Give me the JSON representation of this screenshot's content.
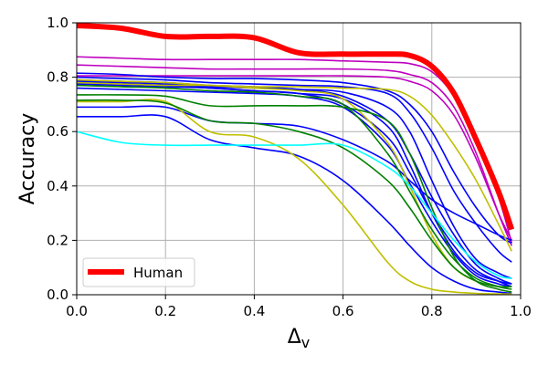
{
  "chart_data": {
    "type": "line",
    "title": "",
    "xlabel_main": "Δ",
    "xlabel_sub": "v",
    "ylabel": "Accuracy",
    "xlim": [
      0.0,
      1.0
    ],
    "ylim": [
      0.0,
      1.0
    ],
    "x_ticks": [
      "0.0",
      "0.2",
      "0.4",
      "0.6",
      "0.8",
      "1.0"
    ],
    "y_ticks": [
      "0.0",
      "0.2",
      "0.4",
      "0.6",
      "0.8",
      "1.0"
    ],
    "grid": true,
    "legend": {
      "position": "lower-left",
      "entries": [
        "Human"
      ]
    },
    "x": [
      0.0,
      0.1,
      0.2,
      0.3,
      0.4,
      0.5,
      0.6,
      0.7,
      0.75,
      0.8,
      0.85,
      0.9,
      0.95,
      0.98
    ],
    "series": [
      {
        "name": "Human",
        "color": "#ff0000",
        "width": 6,
        "legend": true,
        "values": [
          0.99,
          0.98,
          0.95,
          0.95,
          0.945,
          0.89,
          0.885,
          0.885,
          0.88,
          0.84,
          0.74,
          0.57,
          0.38,
          0.24
        ]
      },
      {
        "name": "",
        "color": "#bf00bf",
        "width": 1.6,
        "values": [
          0.875,
          0.87,
          0.865,
          0.865,
          0.865,
          0.865,
          0.86,
          0.855,
          0.85,
          0.82,
          0.73,
          0.57,
          0.36,
          0.19
        ]
      },
      {
        "name": "",
        "color": "#bf00bf",
        "width": 1.6,
        "values": [
          0.845,
          0.84,
          0.835,
          0.83,
          0.83,
          0.83,
          0.83,
          0.825,
          0.81,
          0.78,
          0.69,
          0.52,
          0.3,
          0.18
        ]
      },
      {
        "name": "",
        "color": "#bf00bf",
        "width": 1.6,
        "values": [
          0.805,
          0.805,
          0.805,
          0.805,
          0.805,
          0.805,
          0.805,
          0.8,
          0.785,
          0.75,
          0.66,
          0.5,
          0.3,
          0.2
        ]
      },
      {
        "name": "",
        "color": "#0000ff",
        "width": 1.6,
        "values": [
          0.815,
          0.81,
          0.8,
          0.795,
          0.795,
          0.79,
          0.78,
          0.75,
          0.7,
          0.6,
          0.45,
          0.32,
          0.22,
          0.19
        ]
      },
      {
        "name": "",
        "color": "#0000ff",
        "width": 1.6,
        "values": [
          0.8,
          0.795,
          0.79,
          0.78,
          0.775,
          0.77,
          0.765,
          0.74,
          0.67,
          0.54,
          0.38,
          0.26,
          0.16,
          0.12
        ]
      },
      {
        "name": "",
        "color": "#0000ff",
        "width": 1.6,
        "values": [
          0.785,
          0.78,
          0.775,
          0.765,
          0.76,
          0.755,
          0.745,
          0.69,
          0.6,
          0.42,
          0.25,
          0.13,
          0.08,
          0.06
        ]
      },
      {
        "name": "",
        "color": "#0000ff",
        "width": 1.6,
        "values": [
          0.79,
          0.785,
          0.78,
          0.77,
          0.765,
          0.755,
          0.73,
          0.64,
          0.52,
          0.36,
          0.22,
          0.11,
          0.06,
          0.04
        ]
      },
      {
        "name": "",
        "color": "#0000ff",
        "width": 1.6,
        "values": [
          0.775,
          0.77,
          0.765,
          0.76,
          0.75,
          0.74,
          0.7,
          0.58,
          0.45,
          0.3,
          0.18,
          0.09,
          0.05,
          0.03
        ]
      },
      {
        "name": "",
        "color": "#0000ff",
        "width": 1.6,
        "values": [
          0.76,
          0.755,
          0.75,
          0.745,
          0.74,
          0.73,
          0.69,
          0.55,
          0.41,
          0.27,
          0.15,
          0.07,
          0.04,
          0.03
        ]
      },
      {
        "name": "",
        "color": "#0000ff",
        "width": 1.6,
        "values": [
          0.69,
          0.69,
          0.69,
          0.64,
          0.63,
          0.62,
          0.57,
          0.49,
          0.42,
          0.35,
          0.3,
          0.26,
          0.22,
          0.2
        ]
      },
      {
        "name": "",
        "color": "#0000ff",
        "width": 1.6,
        "values": [
          0.655,
          0.655,
          0.655,
          0.57,
          0.54,
          0.51,
          0.42,
          0.27,
          0.18,
          0.1,
          0.05,
          0.02,
          0.01,
          0.005
        ]
      },
      {
        "name": "",
        "color": "#0000ff",
        "width": 1.6,
        "values": [
          0.78,
          0.775,
          0.77,
          0.76,
          0.75,
          0.74,
          0.72,
          0.62,
          0.48,
          0.3,
          0.16,
          0.08,
          0.05,
          0.04
        ]
      },
      {
        "name": "",
        "color": "#bfbf00",
        "width": 1.6,
        "values": [
          0.78,
          0.775,
          0.77,
          0.77,
          0.765,
          0.765,
          0.76,
          0.755,
          0.73,
          0.66,
          0.55,
          0.42,
          0.26,
          0.16
        ]
      },
      {
        "name": "",
        "color": "#bfbf00",
        "width": 1.6,
        "values": [
          0.79,
          0.785,
          0.78,
          0.77,
          0.76,
          0.75,
          0.72,
          0.56,
          0.4,
          0.22,
          0.1,
          0.05,
          0.03,
          0.03
        ]
      },
      {
        "name": "",
        "color": "#bfbf00",
        "width": 1.6,
        "values": [
          0.71,
          0.71,
          0.71,
          0.6,
          0.58,
          0.5,
          0.33,
          0.12,
          0.05,
          0.02,
          0.01,
          0.005,
          0.003,
          0.003
        ]
      },
      {
        "name": "",
        "color": "#008000",
        "width": 1.6,
        "values": [
          0.735,
          0.735,
          0.73,
          0.695,
          0.695,
          0.695,
          0.69,
          0.64,
          0.52,
          0.32,
          0.14,
          0.05,
          0.02,
          0.01
        ]
      },
      {
        "name": "",
        "color": "#008000",
        "width": 1.6,
        "values": [
          0.715,
          0.715,
          0.705,
          0.64,
          0.63,
          0.6,
          0.54,
          0.42,
          0.32,
          0.2,
          0.1,
          0.05,
          0.03,
          0.03
        ]
      },
      {
        "name": "",
        "color": "#008000",
        "width": 1.6,
        "values": [
          0.77,
          0.765,
          0.76,
          0.75,
          0.745,
          0.73,
          0.7,
          0.52,
          0.38,
          0.24,
          0.13,
          0.06,
          0.03,
          0.02
        ]
      },
      {
        "name": "",
        "color": "#00ffff",
        "width": 1.6,
        "values": [
          0.6,
          0.56,
          0.55,
          0.55,
          0.55,
          0.55,
          0.55,
          0.47,
          0.4,
          0.3,
          0.2,
          0.12,
          0.07,
          0.06
        ]
      }
    ]
  }
}
